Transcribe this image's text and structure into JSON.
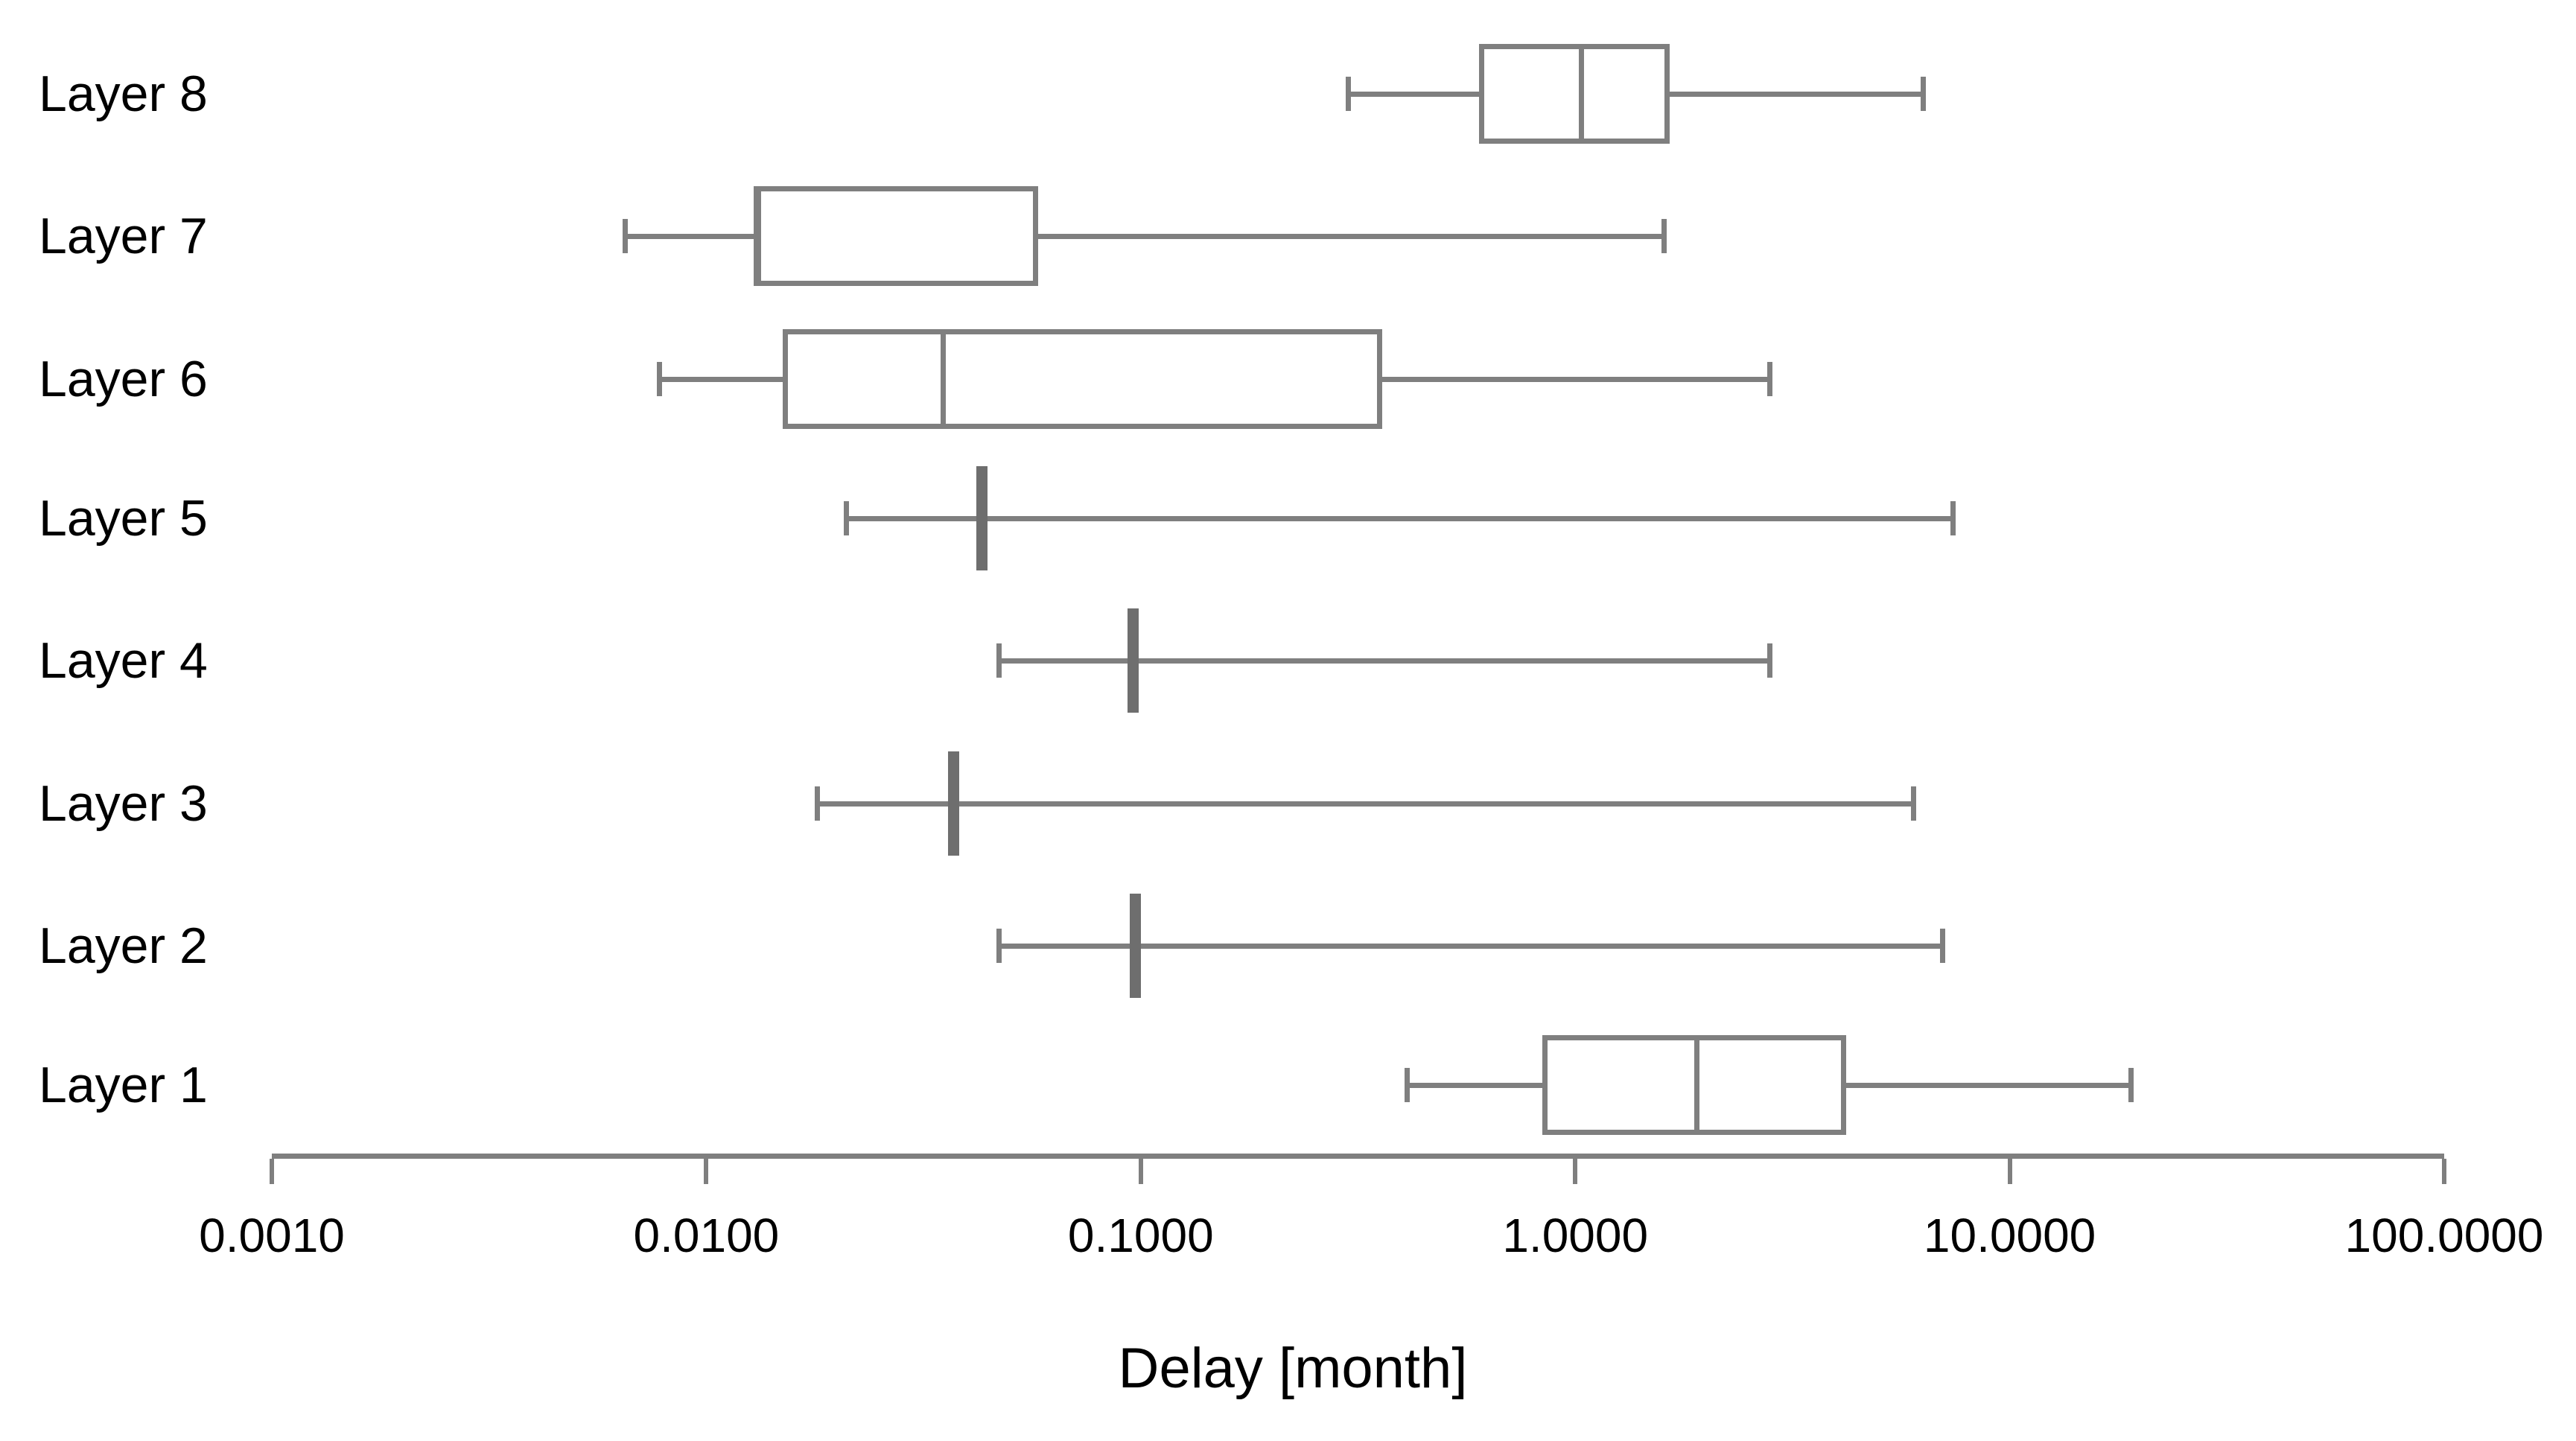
{
  "figure": {
    "background": "#ffffff"
  },
  "chart_data": {
    "type": "boxplot",
    "orientation": "horizontal",
    "title": "",
    "xlabel": "Delay [month]",
    "ylabel": "",
    "x_scale": "log",
    "x_range": [
      0.001,
      100
    ],
    "x_tick_values": [
      0.001,
      0.01,
      0.1,
      1,
      10,
      100
    ],
    "x_tick_labels": [
      "0.0010",
      "0.0100",
      "0.1000",
      "1.0000",
      "10.0000",
      "100.0000"
    ],
    "grid": "off",
    "legend": "none",
    "categories": [
      "Layer 8",
      "Layer 7",
      "Layer 6",
      "Layer 5",
      "Layer 4",
      "Layer 3",
      "Layer 2",
      "Layer 1"
    ],
    "series": [
      {
        "name": "Layer 8",
        "whisker_low": 0.3,
        "q1": 0.6,
        "median": 1.03,
        "q3": 1.65,
        "whisker_high": 6.3
      },
      {
        "name": "Layer 7",
        "whisker_low": 0.0065,
        "q1": 0.013,
        "median": 0.013,
        "q3": 0.058,
        "whisker_high": 1.6
      },
      {
        "name": "Layer 6",
        "whisker_low": 0.0078,
        "q1": 0.015,
        "median": 0.035,
        "q3": 0.36,
        "whisker_high": 2.8
      },
      {
        "name": "Layer 5",
        "whisker_low": 0.021,
        "q1": 0.043,
        "median": 0.043,
        "q3": 0.043,
        "whisker_high": 7.4
      },
      {
        "name": "Layer 4",
        "whisker_low": 0.047,
        "q1": 0.096,
        "median": 0.096,
        "q3": 0.096,
        "whisker_high": 2.8
      },
      {
        "name": "Layer 3",
        "whisker_low": 0.018,
        "q1": 0.037,
        "median": 0.037,
        "q3": 0.037,
        "whisker_high": 6.0
      },
      {
        "name": "Layer 2",
        "whisker_low": 0.047,
        "q1": 0.097,
        "median": 0.097,
        "q3": 0.097,
        "whisker_high": 7.0
      },
      {
        "name": "Layer 1",
        "whisker_low": 0.41,
        "q1": 0.84,
        "median": 1.9,
        "q3": 4.2,
        "whisker_high": 19
      }
    ],
    "colors": {
      "box_stroke": "#7f7f7f",
      "box_fill": "#ffffff",
      "whisker": "#7f7f7f",
      "median": "#6e6e6e",
      "axis": "#7f7f7f",
      "text": "#000000"
    }
  }
}
